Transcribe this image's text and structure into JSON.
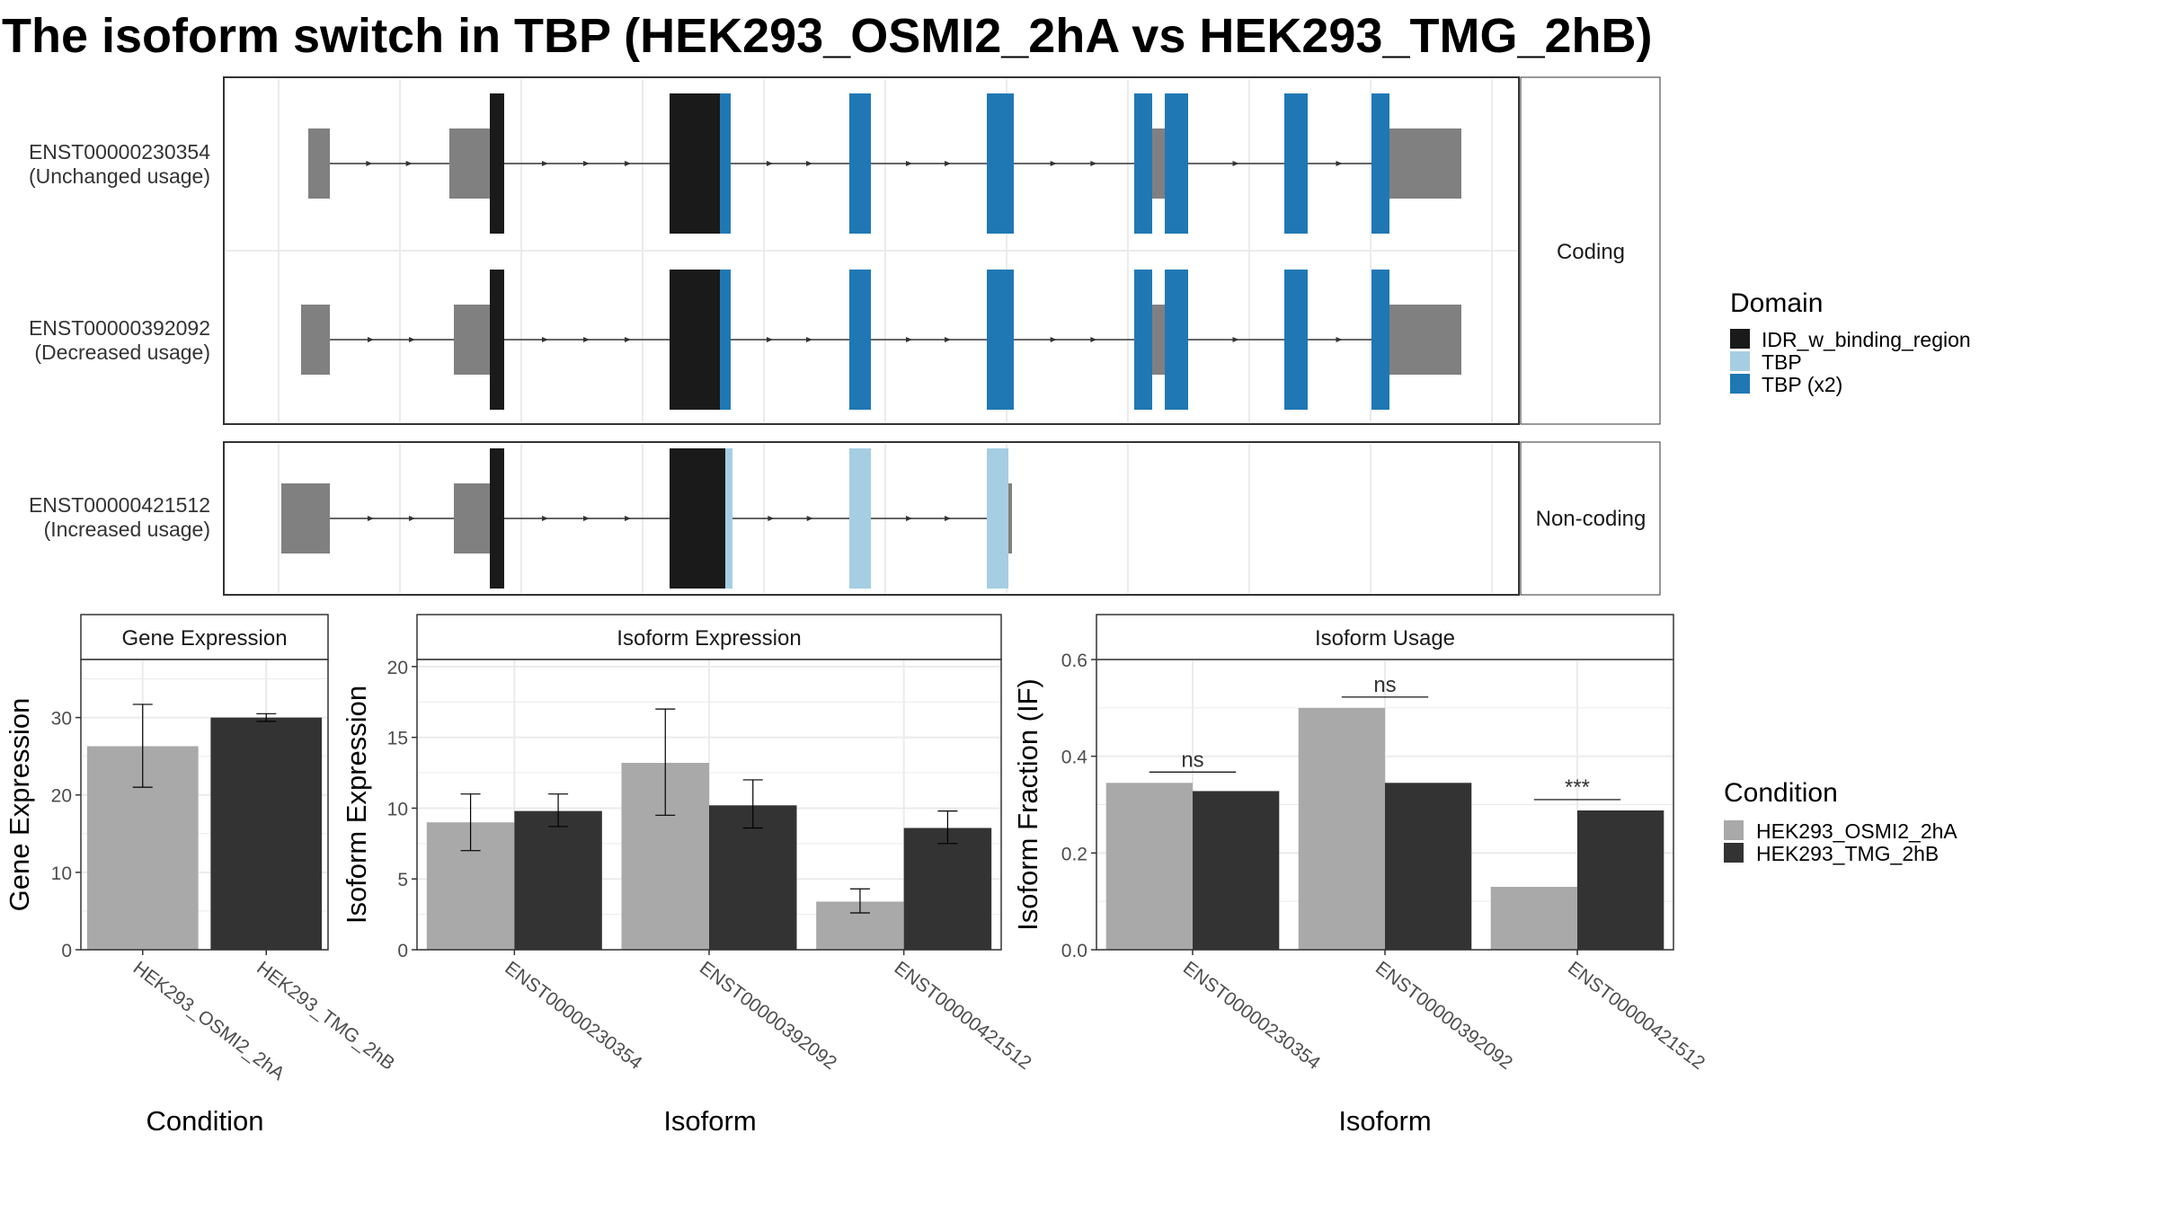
{
  "title": "The isoform switch in TBP (HEK293_OSMI2_2hA vs HEK293_TMG_2hB)",
  "colors": {
    "IDR_w_binding_region": "#1a1a1a",
    "TBP": "#a6cee3",
    "TBP_x2": "#1f78b4",
    "utr": "#808080",
    "cond_A": "#a9a9a9",
    "cond_B": "#333333",
    "panel_border": "#333333",
    "strip_bg": "#ffffff",
    "grid": "#ebebeb"
  },
  "structure": {
    "facets": [
      "Coding",
      "Non-coding"
    ],
    "transcripts": [
      {
        "id": "ENST00000230354",
        "usage": "(Unchanged usage)",
        "facet": "Coding"
      },
      {
        "id": "ENST00000392092",
        "usage": "(Decreased usage)",
        "facet": "Coding"
      },
      {
        "id": "ENST00000421512",
        "usage": "(Increased usage)",
        "facet": "Non-coding"
      }
    ],
    "legend": {
      "title": "Domain",
      "items": [
        {
          "label": "IDR_w_binding_region",
          "color": "#1a1a1a"
        },
        {
          "label": "TBP",
          "color": "#a6cee3"
        },
        {
          "label": "TBP (x2)",
          "color": "#1f78b4"
        }
      ]
    }
  },
  "chart_data": [
    {
      "type": "bar",
      "title": "Gene Expression",
      "xlabel": "Condition",
      "ylabel": "Gene Expression",
      "ylim": [
        0,
        37.5
      ],
      "yticks": [
        0,
        10,
        20,
        30
      ],
      "categories": [
        "HEK293_OSMI2_2hA",
        "HEK293_TMG_2hB"
      ],
      "series": [
        {
          "name": "HEK293_OSMI2_2hA",
          "values": [
            26.3,
            null
          ],
          "err_low": [
            21.0,
            null
          ],
          "err_high": [
            31.7,
            null
          ]
        },
        {
          "name": "HEK293_TMG_2hB",
          "values": [
            null,
            30.0
          ],
          "err_low": [
            null,
            29.5
          ],
          "err_high": [
            null,
            30.5
          ]
        }
      ]
    },
    {
      "type": "bar",
      "title": "Isoform Expression",
      "xlabel": "Isoform",
      "ylabel": "Isoform Expression",
      "ylim": [
        0,
        20.5
      ],
      "yticks": [
        0,
        5,
        10,
        15,
        20
      ],
      "categories": [
        "ENST00000230354",
        "ENST00000392092",
        "ENST00000421512"
      ],
      "series": [
        {
          "name": "HEK293_OSMI2_2hA",
          "values": [
            9.0,
            13.2,
            3.4
          ],
          "err_low": [
            7.0,
            9.5,
            2.6
          ],
          "err_high": [
            11.0,
            17.0,
            4.3
          ]
        },
        {
          "name": "HEK293_TMG_2hB",
          "values": [
            9.8,
            10.2,
            8.6
          ],
          "err_low": [
            8.7,
            8.6,
            7.5
          ],
          "err_high": [
            11.0,
            12.0,
            9.8
          ]
        }
      ]
    },
    {
      "type": "bar",
      "title": "Isoform Usage",
      "xlabel": "Isoform",
      "ylabel": "Isoform Fraction (IF)",
      "ylim": [
        0,
        0.6
      ],
      "yticks": [
        "0.0",
        "0.2",
        "0.4",
        "0.6"
      ],
      "categories": [
        "ENST00000230354",
        "ENST00000392092",
        "ENST00000421512"
      ],
      "series": [
        {
          "name": "HEK293_OSMI2_2hA",
          "values": [
            0.345,
            0.5,
            0.13
          ]
        },
        {
          "name": "HEK293_TMG_2hB",
          "values": [
            0.328,
            0.345,
            0.288
          ]
        }
      ],
      "significance": [
        "ns",
        "ns",
        "***"
      ]
    }
  ],
  "condition_legend": {
    "title": "Condition",
    "items": [
      {
        "label": "HEK293_OSMI2_2hA",
        "color": "#a9a9a9"
      },
      {
        "label": "HEK293_TMG_2hB",
        "color": "#333333"
      }
    ]
  }
}
